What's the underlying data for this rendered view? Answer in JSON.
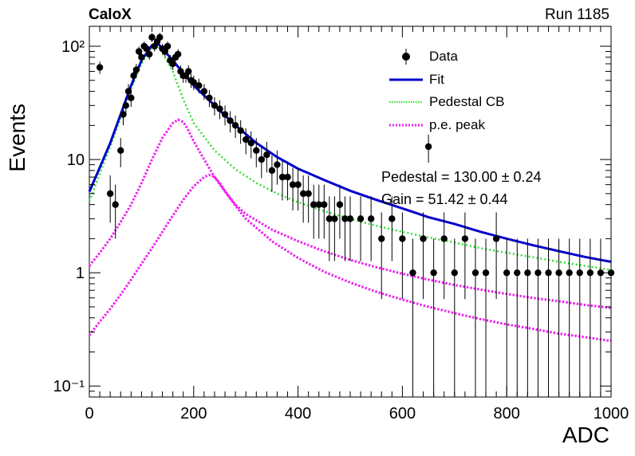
{
  "header": {
    "experiment": "CaloX",
    "run": "Run 1185"
  },
  "stats": {
    "pedestal": "Pedestal = 130.00 ± 0.24",
    "gain": "Gain = 51.42 ± 0.44"
  },
  "colors": {
    "data": "#000000",
    "fit": "#0000cc",
    "pedestal": "#33dd33",
    "pe_peak": "#ee22ee"
  },
  "chart_data": {
    "type": "scatter",
    "xlabel": "ADC",
    "ylabel": "Events",
    "xlim": [
      0,
      1000
    ],
    "ylim": [
      0.08,
      150
    ],
    "yscale": "log",
    "x_ticks": [
      0,
      200,
      400,
      600,
      800,
      1000
    ],
    "y_ticks": [
      {
        "value": 0.1,
        "label": "10⁻¹"
      },
      {
        "value": 1,
        "label": "1"
      },
      {
        "value": 10,
        "label": "10"
      },
      {
        "value": 100,
        "label": "10²"
      }
    ],
    "legend": {
      "placement": "top-right",
      "entries": [
        {
          "name": "Data",
          "style": "marker"
        },
        {
          "name": "Fit",
          "style": "solid"
        },
        {
          "name": "Pedestal CB",
          "style": "dotted-green"
        },
        {
          "name": "p.e. peak",
          "style": "dotted-magenta"
        }
      ]
    },
    "series": [
      {
        "name": "Data",
        "x": [
          20,
          40,
          50,
          60,
          65,
          70,
          75,
          80,
          85,
          90,
          95,
          100,
          105,
          110,
          115,
          120,
          125,
          130,
          135,
          140,
          145,
          150,
          155,
          160,
          165,
          170,
          175,
          180,
          185,
          190,
          195,
          200,
          210,
          220,
          230,
          240,
          250,
          260,
          270,
          280,
          290,
          300,
          310,
          320,
          330,
          340,
          350,
          360,
          370,
          380,
          390,
          400,
          410,
          420,
          430,
          440,
          450,
          460,
          470,
          480,
          490,
          500,
          520,
          540,
          560,
          580,
          600,
          620,
          640,
          650,
          660,
          680,
          700,
          720,
          740,
          760,
          780,
          800,
          820,
          840,
          860,
          880,
          900,
          920,
          940,
          960,
          980,
          1000
        ],
        "y": [
          65,
          5,
          4,
          12,
          25,
          30,
          40,
          35,
          55,
          62,
          90,
          80,
          100,
          95,
          85,
          120,
          100,
          110,
          120,
          95,
          90,
          100,
          75,
          70,
          80,
          85,
          60,
          55,
          55,
          60,
          50,
          48,
          45,
          40,
          35,
          30,
          28,
          25,
          22,
          20,
          18,
          15,
          14,
          12,
          10,
          11,
          8,
          9,
          7,
          7,
          6,
          6,
          5,
          5,
          4,
          4,
          4,
          3,
          3,
          4,
          3,
          3,
          3,
          3,
          2,
          3,
          2,
          1,
          2,
          13,
          1,
          2,
          1,
          2,
          1,
          1,
          2,
          1,
          1,
          1,
          1,
          1,
          1,
          1,
          1,
          1,
          1,
          1
        ]
      },
      {
        "name": "Fit",
        "x": [
          0,
          20,
          40,
          60,
          80,
          100,
          120,
          130,
          140,
          160,
          180,
          200,
          240,
          280,
          320,
          360,
          400,
          450,
          500,
          550,
          600,
          650,
          700,
          750,
          800,
          850,
          900,
          950,
          1000
        ],
        "y": [
          5.2,
          8.5,
          14,
          25,
          45,
          75,
          102,
          108,
          95,
          75,
          58,
          45,
          30,
          20,
          14,
          10.5,
          8.3,
          6.6,
          5.3,
          4.4,
          3.7,
          3.1,
          2.7,
          2.3,
          2.0,
          1.75,
          1.55,
          1.38,
          1.25
        ]
      },
      {
        "name": "Pedestal CB",
        "x": [
          0,
          20,
          40,
          60,
          80,
          100,
          120,
          130,
          140,
          160,
          180,
          200,
          240,
          280,
          320,
          360,
          400,
          450,
          500,
          550,
          600,
          650,
          700,
          750,
          800,
          850,
          900,
          950,
          1000
        ],
        "y": [
          4.3,
          7.5,
          13,
          23,
          42,
          70,
          98,
          104,
          88,
          60,
          34,
          21,
          12,
          8.2,
          6.2,
          5.0,
          4.2,
          3.5,
          3.0,
          2.6,
          2.3,
          2.05,
          1.85,
          1.65,
          1.5,
          1.37,
          1.25,
          1.15,
          1.06
        ]
      },
      {
        "name": "p.e. peak (1)",
        "x": [
          0,
          20,
          40,
          60,
          80,
          100,
          120,
          140,
          160,
          170,
          180,
          190,
          200,
          220,
          240,
          260,
          280,
          300,
          350,
          400,
          450,
          500,
          550,
          600,
          650,
          700,
          750,
          800,
          850,
          900,
          950,
          1000
        ],
        "y": [
          1.15,
          1.5,
          2.0,
          2.8,
          4.0,
          6.2,
          10,
          15.5,
          21,
          22.5,
          21.5,
          18,
          14.5,
          10,
          7.0,
          5.2,
          4.0,
          3.3,
          2.4,
          1.9,
          1.55,
          1.3,
          1.12,
          0.98,
          0.87,
          0.78,
          0.71,
          0.65,
          0.6,
          0.56,
          0.52,
          0.49
        ]
      },
      {
        "name": "p.e. peak (2)",
        "x": [
          0,
          20,
          40,
          60,
          80,
          100,
          120,
          140,
          160,
          180,
          200,
          220,
          230,
          240,
          250,
          260,
          280,
          300,
          350,
          400,
          450,
          500,
          550,
          600,
          650,
          700,
          750,
          800,
          850,
          900,
          950,
          1000
        ],
        "y": [
          0.28,
          0.37,
          0.48,
          0.64,
          0.87,
          1.2,
          1.65,
          2.3,
          3.2,
          4.4,
          5.8,
          7.0,
          7.3,
          7.0,
          6.2,
          5.3,
          3.9,
          3.0,
          1.9,
          1.35,
          1.02,
          0.82,
          0.68,
          0.58,
          0.5,
          0.44,
          0.39,
          0.35,
          0.32,
          0.29,
          0.27,
          0.25
        ]
      }
    ]
  }
}
